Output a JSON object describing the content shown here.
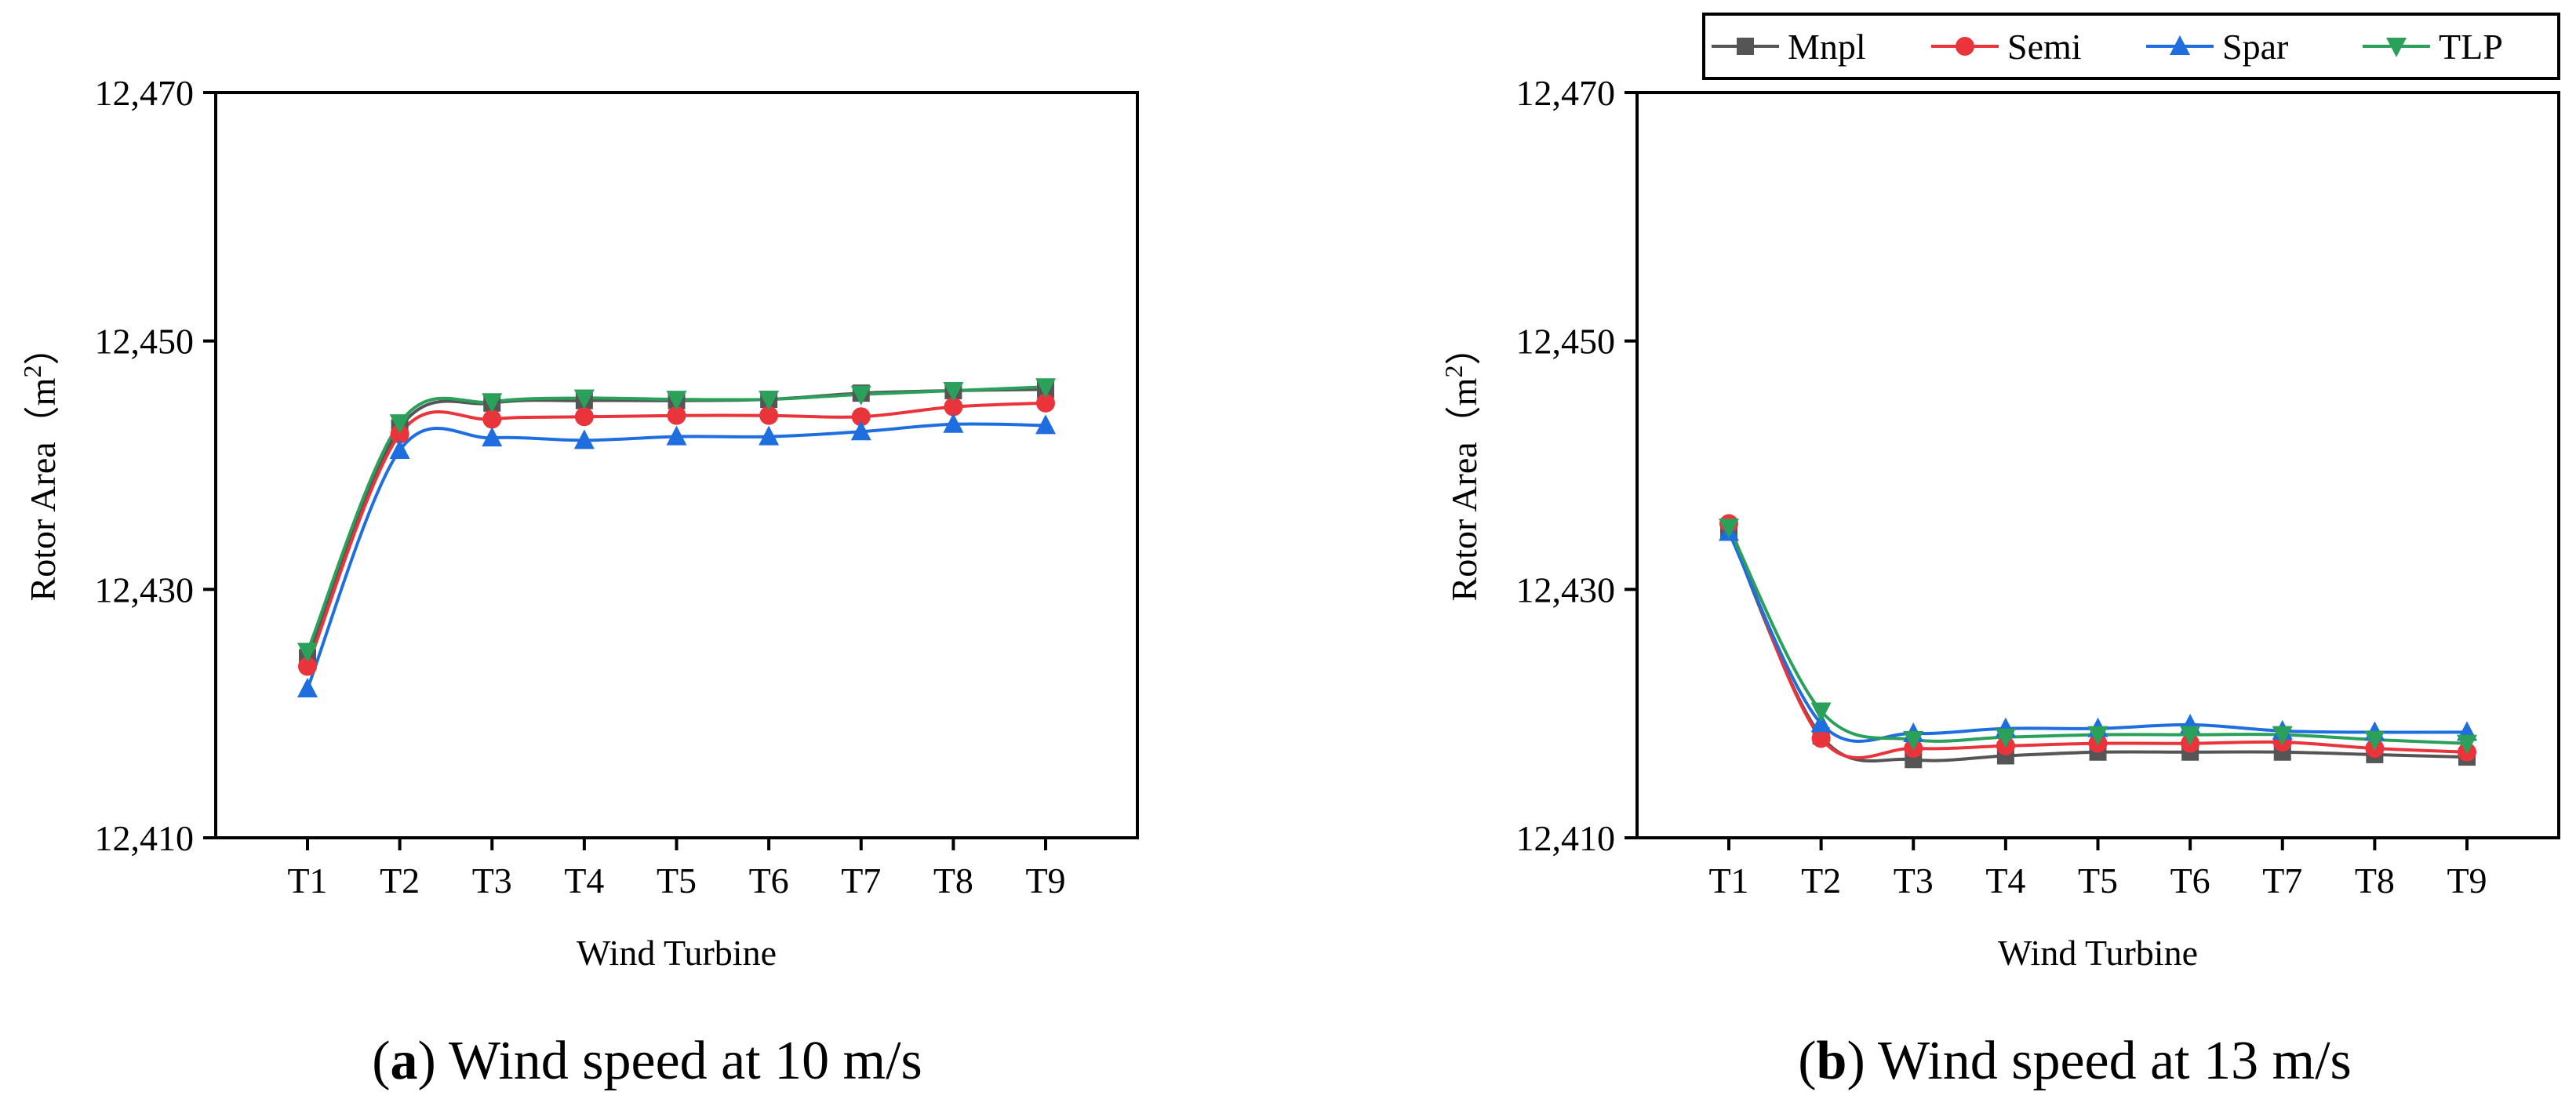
{
  "colors": {
    "Mnpl": "#555555",
    "Semi": "#e8343a",
    "Spar": "#1f6ee0",
    "TLP": "#2aa05a"
  },
  "legend": [
    {
      "name": "Mnpl",
      "marker": "square"
    },
    {
      "name": "Semi",
      "marker": "circle"
    },
    {
      "name": "Spar",
      "marker": "triangle-up"
    },
    {
      "name": "TLP",
      "marker": "triangle-down"
    }
  ],
  "chart_data": [
    {
      "type": "line",
      "caption_letter": "a",
      "caption_text": " Wind speed at 10 m/s",
      "xlabel": "Wind Turbine",
      "ylabel_main": "Rotor Area（m",
      "ylabel_sup": "2",
      "ylabel_close": "）",
      "ylim": [
        12410,
        12470
      ],
      "yticks": [
        12410,
        12430,
        12450,
        12470
      ],
      "ytick_labels": [
        "12,410",
        "12,430",
        "12,450",
        "12,470"
      ],
      "categories": [
        "T1",
        "T2",
        "T3",
        "T4",
        "T5",
        "T6",
        "T7",
        "T8",
        "T9"
      ],
      "series": [
        {
          "name": "Mnpl",
          "values": [
            12424.5,
            12443.0,
            12445.0,
            12445.2,
            12445.2,
            12445.3,
            12445.8,
            12446.0,
            12446.1
          ]
        },
        {
          "name": "Semi",
          "values": [
            12423.8,
            12442.5,
            12443.7,
            12443.9,
            12444.0,
            12444.0,
            12443.9,
            12444.7,
            12445.0
          ]
        },
        {
          "name": "Spar",
          "values": [
            12422.0,
            12441.2,
            12442.2,
            12442.0,
            12442.3,
            12442.3,
            12442.7,
            12443.3,
            12443.2
          ]
        },
        {
          "name": "TLP",
          "values": [
            12425.0,
            12443.4,
            12445.1,
            12445.4,
            12445.3,
            12445.3,
            12445.7,
            12446.0,
            12446.3
          ]
        }
      ]
    },
    {
      "type": "line",
      "caption_letter": "b",
      "caption_text": " Wind speed at 13 m/s",
      "xlabel": "Wind Turbine",
      "ylabel_main": "Rotor Area（m",
      "ylabel_sup": "2",
      "ylabel_close": "）",
      "ylim": [
        12410,
        12470
      ],
      "yticks": [
        12410,
        12430,
        12450,
        12470
      ],
      "ytick_labels": [
        "12,410",
        "12,430",
        "12,450",
        "12,470"
      ],
      "categories": [
        "T1",
        "T2",
        "T3",
        "T4",
        "T5",
        "T6",
        "T7",
        "T8",
        "T9"
      ],
      "series": [
        {
          "name": "Mnpl",
          "values": [
            12434.8,
            12418.2,
            12416.3,
            12416.6,
            12416.9,
            12416.9,
            12416.9,
            12416.7,
            12416.5
          ]
        },
        {
          "name": "Semi",
          "values": [
            12435.3,
            12418.0,
            12417.2,
            12417.4,
            12417.6,
            12417.6,
            12417.7,
            12417.2,
            12416.9
          ]
        },
        {
          "name": "Spar",
          "values": [
            12434.6,
            12419.2,
            12418.4,
            12418.8,
            12418.8,
            12419.1,
            12418.6,
            12418.5,
            12418.5
          ]
        },
        {
          "name": "TLP",
          "values": [
            12435.0,
            12420.2,
            12417.9,
            12418.1,
            12418.3,
            12418.3,
            12418.3,
            12417.9,
            12417.6
          ]
        }
      ]
    }
  ]
}
